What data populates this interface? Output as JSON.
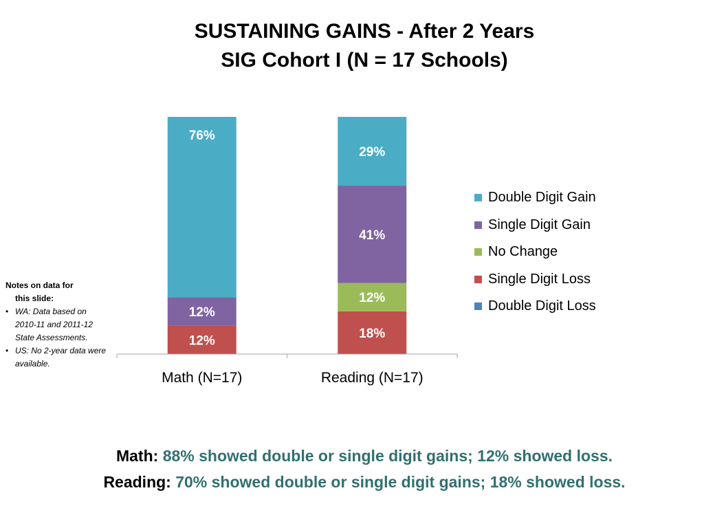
{
  "title": {
    "line1": "SUSTAINING GAINS - After 2 Years",
    "line2": "SIG Cohort I (N = 17 Schools)"
  },
  "notes": {
    "header_line1": "Notes on data for",
    "header_line2": "this slide:",
    "items": [
      "WA: Data based on 2010-11 and 2011-12 State Assessments.",
      "US: No 2-year data were available."
    ]
  },
  "chart_data": {
    "type": "bar",
    "stacked": true,
    "categories": [
      "Math (N=17)",
      "Reading (N=17)"
    ],
    "series": [
      {
        "name": "Double Digit Loss",
        "color": "#4f81bd",
        "values": [
          0,
          0
        ],
        "labels": [
          "",
          ""
        ]
      },
      {
        "name": "Single Digit Loss",
        "color": "#c0504d",
        "values": [
          12,
          18
        ],
        "labels": [
          "12%",
          "18%"
        ]
      },
      {
        "name": "No Change",
        "color": "#9bbb59",
        "values": [
          0,
          12
        ],
        "labels": [
          "",
          "12%"
        ]
      },
      {
        "name": "Single Digit Gain",
        "color": "#8064a2",
        "values": [
          12,
          41
        ],
        "labels": [
          "12%",
          "41%"
        ]
      },
      {
        "name": "Double Digit Gain",
        "color": "#4bacc6",
        "values": [
          76,
          29
        ],
        "labels": [
          "76%",
          "29%"
        ]
      }
    ],
    "legend_order": [
      "Double Digit Gain",
      "Single Digit Gain",
      "No Change",
      "Single Digit Loss",
      "Double Digit Loss"
    ],
    "ylim": [
      0,
      100
    ],
    "legend_position": "right",
    "grid": false
  },
  "summary": {
    "math_label": "Math:",
    "math_text": "88% showed double or single digit gains; 12% showed loss.",
    "reading_label": "Reading:",
    "reading_text": "70% showed double or single digit gains; 18% showed loss."
  }
}
